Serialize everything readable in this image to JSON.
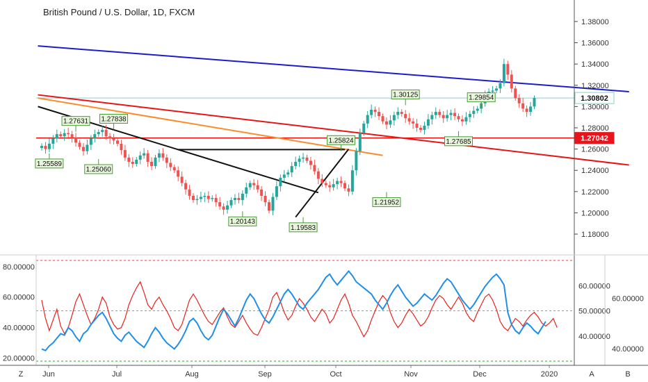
{
  "chart_data": {
    "type": "candlestick",
    "title": "British Pound / U.S. Dollar, 1D, FXCM",
    "x_ticks": [
      "Jun",
      "Jul",
      "Aug",
      "Sep",
      "Oct",
      "Nov",
      "Dec",
      "2020"
    ],
    "price_axis": {
      "ylim": [
        1.165,
        1.395
      ],
      "ticks": [
        "1.38000",
        "1.36000",
        "1.34000",
        "1.32000",
        "1.30000",
        "1.28000",
        "1.26000",
        "1.24000",
        "1.22000",
        "1.20000",
        "1.18000"
      ]
    },
    "price_tags": [
      {
        "label": "1.30802",
        "value": 1.30802,
        "color": "#ffffff",
        "text_color": "#111111"
      },
      {
        "label": "1.27042",
        "value": 1.27042,
        "color": "#e8141c",
        "text_color": "#ffffff"
      }
    ],
    "price_points": [
      1.263,
      1.26,
      1.265,
      1.27,
      1.274,
      1.272,
      1.275,
      1.274,
      1.271,
      1.266,
      1.262,
      1.258,
      1.264,
      1.27,
      1.274,
      1.276,
      1.278,
      1.272,
      1.27,
      1.268,
      1.265,
      1.259,
      1.252,
      1.248,
      1.246,
      1.25,
      1.254,
      1.256,
      1.248,
      1.244,
      1.252,
      1.256,
      1.252,
      1.247,
      1.243,
      1.24,
      1.234,
      1.228,
      1.222,
      1.216,
      1.212,
      1.213,
      1.215,
      1.216,
      1.213,
      1.214,
      1.21,
      1.206,
      1.203,
      1.207,
      1.212,
      1.214,
      1.212,
      1.218,
      1.224,
      1.228,
      1.226,
      1.222,
      1.216,
      1.21,
      1.202,
      1.215,
      1.225,
      1.233,
      1.236,
      1.238,
      1.244,
      1.248,
      1.251,
      1.252,
      1.249,
      1.245,
      1.239,
      1.232,
      1.228,
      1.226,
      1.224,
      1.227,
      1.23,
      1.228,
      1.223,
      1.22,
      1.24,
      1.258,
      1.275,
      1.284,
      1.292,
      1.297,
      1.295,
      1.291,
      1.286,
      1.283,
      1.287,
      1.292,
      1.295,
      1.293,
      1.289,
      1.286,
      1.284,
      1.28,
      1.278,
      1.282,
      1.288,
      1.292,
      1.295,
      1.292,
      1.289,
      1.292,
      1.294,
      1.291,
      1.288,
      1.286,
      1.29,
      1.293,
      1.296,
      1.298,
      1.303,
      1.31,
      1.314,
      1.315,
      1.317,
      1.322,
      1.34,
      1.33,
      1.317,
      1.308,
      1.303,
      1.298,
      1.295,
      1.3,
      1.308
    ],
    "callouts": [
      {
        "label": "1.27631",
        "date_index": 9,
        "value": 1.27631,
        "side": "above"
      },
      {
        "label": "1.27838",
        "date_index": 19,
        "value": 1.27838,
        "side": "above"
      },
      {
        "label": "1.25589",
        "date_index": 2,
        "value": 1.25589,
        "side": "below"
      },
      {
        "label": "1.25060",
        "date_index": 15,
        "value": 1.2506,
        "side": "below"
      },
      {
        "label": "1.20143",
        "date_index": 53,
        "value": 1.20143,
        "side": "below"
      },
      {
        "label": "1.19583",
        "date_index": 69,
        "value": 1.19583,
        "side": "below"
      },
      {
        "label": "1.25824",
        "date_index": 79,
        "value": 1.25824,
        "side": "above"
      },
      {
        "label": "1.21952",
        "date_index": 91,
        "value": 1.21952,
        "side": "below"
      },
      {
        "label": "1.30125",
        "date_index": 96,
        "value": 1.30125,
        "side": "above"
      },
      {
        "label": "1.29854",
        "date_index": 116,
        "value": 1.29854,
        "side": "above"
      },
      {
        "label": "1.27685",
        "date_index": 110,
        "value": 1.27685,
        "side": "below"
      }
    ],
    "trend_lines": [
      {
        "color": "#1c1ccc",
        "from": [
          -1,
          1.357
        ],
        "to": [
          155,
          1.314
        ]
      },
      {
        "color": "#e81414",
        "from": [
          -1,
          1.311
        ],
        "to": [
          155,
          1.245
        ]
      },
      {
        "color": "#ff8a2a",
        "from": [
          -1,
          1.308
        ],
        "to": [
          90,
          1.254
        ]
      },
      {
        "color": "#111111",
        "from": [
          -1,
          1.3
        ],
        "to": [
          73,
          1.219
        ]
      },
      {
        "color": "#111111",
        "from": [
          36,
          1.2595
        ],
        "to": [
          80,
          1.2595
        ]
      },
      {
        "color": "#111111",
        "from": [
          67,
          1.196
        ],
        "to": [
          81,
          1.26
        ]
      }
    ],
    "horizontal_lines": [
      {
        "color": "#e81414",
        "value": 1.27042
      },
      {
        "color": "#7fd3cf",
        "value": 1.30802
      }
    ],
    "indicator": {
      "left_ticks": [
        "80.00000",
        "60.00000",
        "40.00000",
        "20.00000"
      ],
      "left_range": [
        18,
        84
      ],
      "right_ticks": [
        "60.00000",
        "40.00000"
      ],
      "right_range": [
        35,
        75
      ],
      "mid_ticks": [
        "60.00000",
        "50.00000",
        "40.00000"
      ],
      "mid_range": [
        30,
        70
      ],
      "levels": [
        {
          "value": 70,
          "color": "#e84040"
        },
        {
          "value": 50,
          "color": "#999999"
        },
        {
          "value": 30,
          "color": "#2aa02a"
        }
      ],
      "series": [
        {
          "color": "#e8211c",
          "values": [
            58,
            46,
            38,
            45,
            52,
            41,
            36,
            40,
            48,
            57,
            62,
            55,
            48,
            42,
            46,
            52,
            60,
            56,
            47,
            42,
            39,
            40,
            46,
            55,
            61,
            66,
            70,
            63,
            55,
            52,
            57,
            60,
            55,
            51,
            46,
            40,
            38,
            42,
            50,
            58,
            62,
            58,
            53,
            48,
            44,
            42,
            46,
            50,
            53,
            47,
            42,
            40,
            44,
            48,
            43,
            39,
            36,
            35,
            40,
            46,
            52,
            60,
            63,
            57,
            50,
            45,
            48,
            54,
            59,
            56,
            52,
            47,
            44,
            48,
            52,
            49,
            43,
            46,
            52,
            58,
            62,
            56,
            48,
            44,
            39,
            34,
            38,
            45,
            51,
            57,
            61,
            58,
            50,
            44,
            40,
            43,
            48,
            52,
            49,
            45,
            41,
            43,
            47,
            53,
            58,
            61,
            59,
            55,
            52,
            56,
            60,
            56,
            50,
            46,
            44,
            50,
            55,
            60,
            62,
            58,
            52,
            44,
            40,
            38,
            42,
            46,
            44,
            41,
            45,
            48,
            50,
            47,
            43,
            41,
            43,
            46,
            40
          ]
        },
        {
          "color": "#1f8ee8",
          "values": [
            26,
            25,
            28,
            30,
            33,
            36,
            35,
            40,
            38,
            34,
            31,
            36,
            38,
            42,
            45,
            48,
            50,
            46,
            41,
            36,
            33,
            31,
            35,
            37,
            34,
            31,
            29,
            27,
            31,
            36,
            40,
            37,
            33,
            30,
            28,
            26,
            29,
            33,
            38,
            44,
            46,
            43,
            38,
            34,
            32,
            35,
            41,
            47,
            52,
            49,
            45,
            41,
            46,
            52,
            58,
            62,
            59,
            54,
            49,
            45,
            43,
            47,
            52,
            57,
            62,
            65,
            62,
            58,
            54,
            52,
            56,
            59,
            62,
            65,
            69,
            73,
            75,
            71,
            68,
            71,
            74,
            77,
            74,
            70,
            68,
            66,
            64,
            62,
            58,
            55,
            52,
            56,
            61,
            65,
            68,
            64,
            60,
            57,
            54,
            56,
            59,
            62,
            60,
            58,
            61,
            65,
            69,
            72,
            70,
            66,
            62,
            58,
            55,
            52,
            55,
            59,
            63,
            67,
            70,
            73,
            75,
            72,
            68,
            50,
            42,
            38,
            36,
            40,
            43,
            41,
            38,
            36,
            40,
            44
          ]
        }
      ]
    },
    "bottom_buttons": [
      "Z",
      "A",
      "B"
    ]
  }
}
